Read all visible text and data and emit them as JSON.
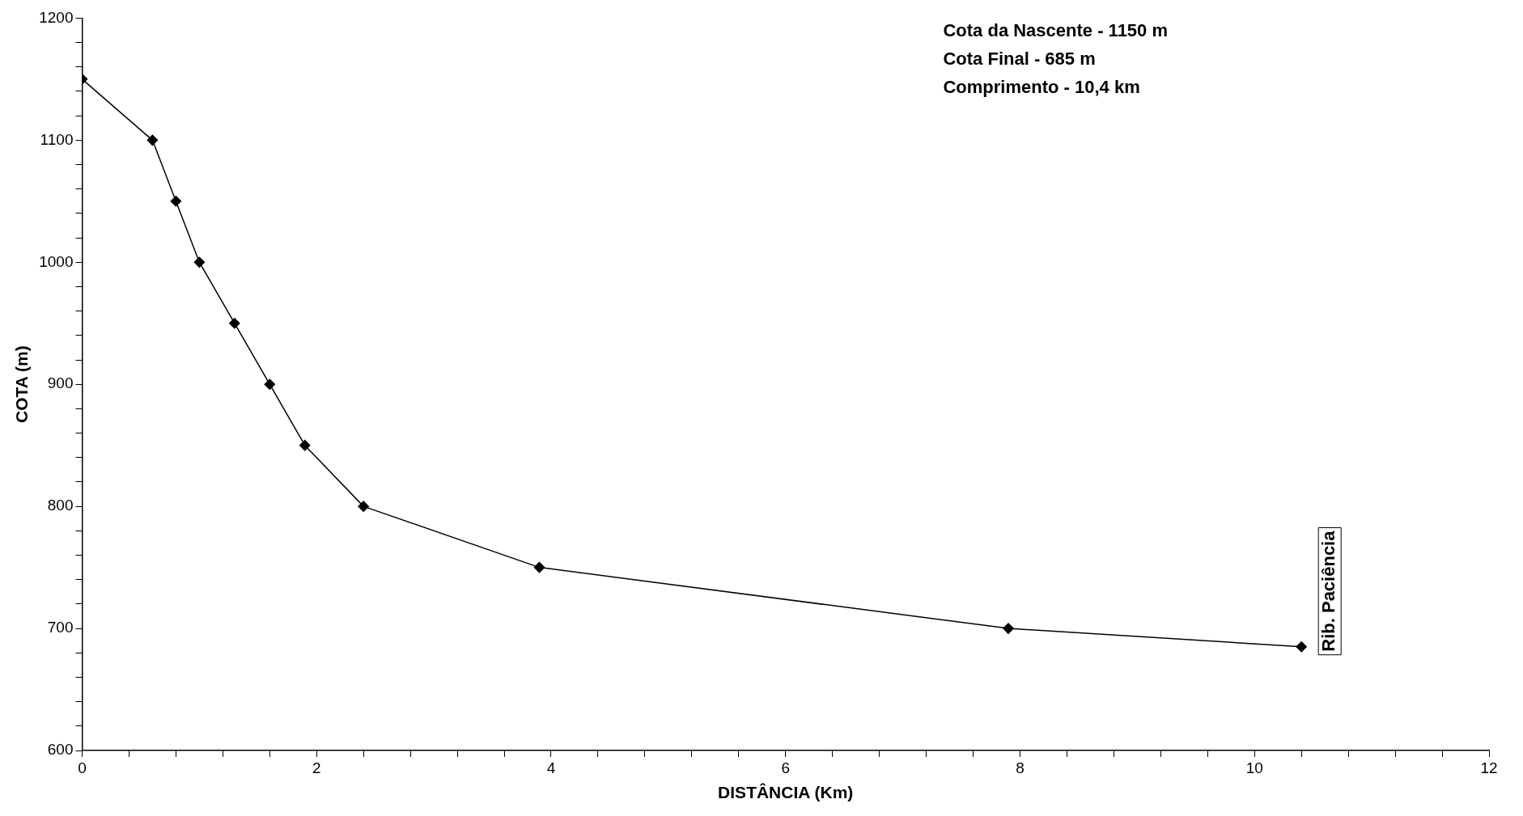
{
  "chart_data": {
    "type": "line",
    "xlabel": "DISTÂNCIA (Km)",
    "ylabel": "COTA (m)",
    "x": [
      0,
      0.6,
      0.8,
      1.0,
      1.3,
      1.6,
      1.9,
      2.4,
      3.9,
      7.9,
      10.4
    ],
    "series": [
      {
        "color": "#000000",
        "values": [
          1150,
          1100,
          1050,
          1000,
          950,
          900,
          850,
          800,
          750,
          700,
          685
        ]
      }
    ],
    "xlim": [
      0,
      12
    ],
    "xticks": [
      0,
      {
        "value": 0.4,
        "label": null
      },
      {
        "value": 0.8,
        "label": null
      },
      {
        "value": 1.2,
        "label": null
      },
      {
        "value": 1.6,
        "label": null
      },
      2,
      {
        "value": 2.4,
        "label": null
      },
      {
        "value": 2.8,
        "label": null
      },
      {
        "value": 3.2,
        "label": null
      },
      {
        "value": 3.6,
        "label": null
      },
      4,
      {
        "value": 4.4,
        "label": null
      },
      {
        "value": 4.8,
        "label": null
      },
      {
        "value": 5.2,
        "label": null
      },
      {
        "value": 5.6,
        "label": null
      },
      6,
      {
        "value": 6.4,
        "label": null
      },
      {
        "value": 6.8,
        "label": null
      },
      {
        "value": 7.2,
        "label": null
      },
      {
        "value": 7.6,
        "label": null
      },
      8,
      {
        "value": 8.4,
        "label": null
      },
      {
        "value": 8.8,
        "label": null
      },
      {
        "value": 9.2,
        "label": null
      },
      {
        "value": 9.6,
        "label": null
      },
      10,
      {
        "value": 10.4,
        "label": null
      },
      {
        "value": 10.8,
        "label": null
      },
      {
        "value": 11.2,
        "label": null
      },
      {
        "value": 11.6,
        "label": null
      },
      12
    ],
    "ylim": [
      600,
      1200
    ],
    "yticks": [
      600,
      {
        "value": 620,
        "label": null
      },
      {
        "value": 640,
        "label": null
      },
      {
        "value": 660,
        "label": null
      },
      {
        "value": 680,
        "label": null
      },
      700,
      {
        "value": 720,
        "label": null
      },
      {
        "value": 740,
        "label": null
      },
      {
        "value": 760,
        "label": null
      },
      {
        "value": 780,
        "label": null
      },
      800,
      {
        "value": 820,
        "label": null
      },
      {
        "value": 840,
        "label": null
      },
      {
        "value": 860,
        "label": null
      },
      {
        "value": 880,
        "label": null
      },
      900,
      {
        "value": 920,
        "label": null
      },
      {
        "value": 940,
        "label": null
      },
      {
        "value": 960,
        "label": null
      },
      {
        "value": 980,
        "label": null
      },
      1000,
      {
        "value": 1020,
        "label": null
      },
      {
        "value": 1040,
        "label": null
      },
      {
        "value": 1060,
        "label": null
      },
      {
        "value": 1080,
        "label": null
      },
      1100,
      {
        "value": 1120,
        "label": null
      },
      {
        "value": 1140,
        "label": null
      },
      {
        "value": 1160,
        "label": null
      },
      {
        "value": 1180,
        "label": null
      },
      1200
    ],
    "grid": false,
    "legend": false,
    "marker": "diamond",
    "line_style": "solid",
    "annotations": [
      "Cota da Nascente - 1150 m",
      "Cota Final - 685 m",
      "Comprimento - 10,4 km",
      {
        "text": "Rib. Paciência",
        "x": 10.4,
        "y": 685
      }
    ]
  }
}
